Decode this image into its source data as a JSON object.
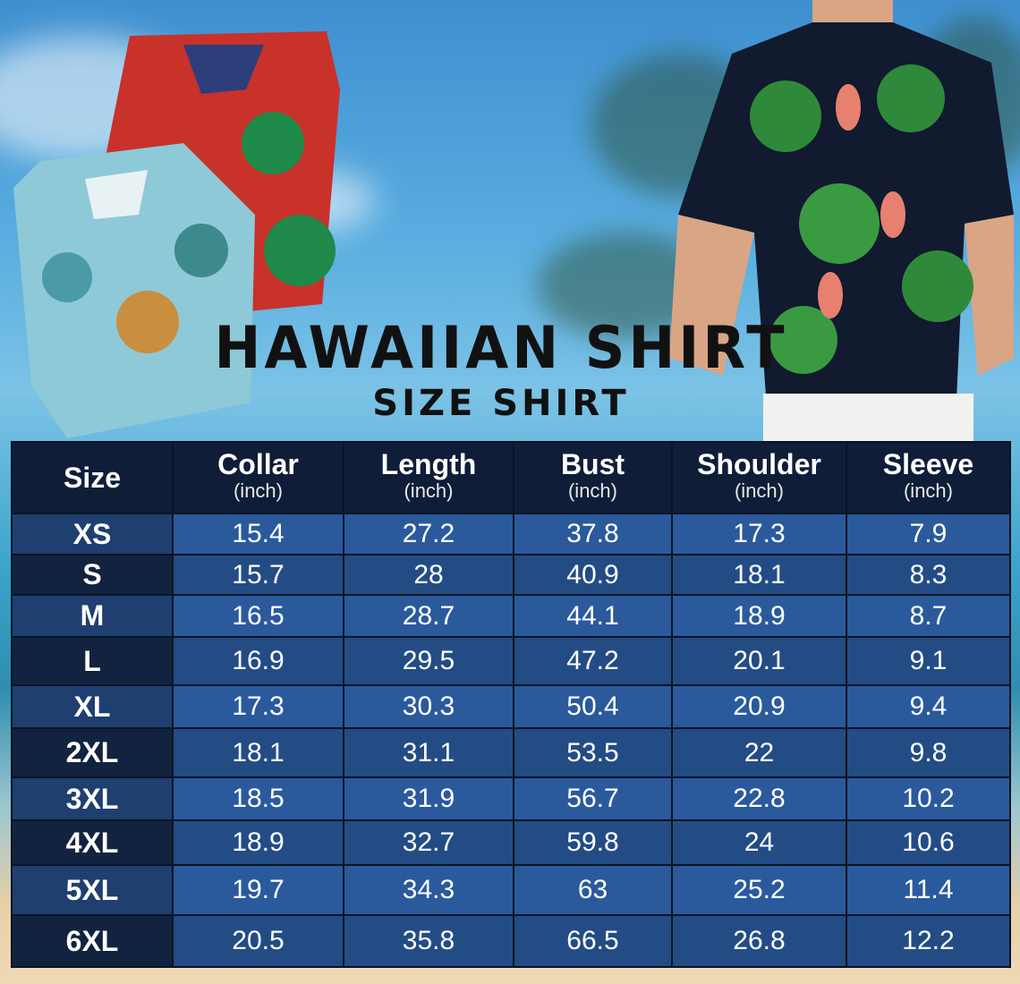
{
  "title": "HAWAIIAN SHIRT",
  "subtitle": "SIZE SHIRT",
  "table": {
    "headers": [
      {
        "label": "Size",
        "unit": ""
      },
      {
        "label": "Collar",
        "unit": "(inch)"
      },
      {
        "label": "Length",
        "unit": "(inch)"
      },
      {
        "label": "Bust",
        "unit": "(inch)"
      },
      {
        "label": "Shoulder",
        "unit": "(inch)"
      },
      {
        "label": "Sleeve",
        "unit": "(inch)"
      }
    ],
    "rows": [
      [
        "XS",
        "15.4",
        "27.2",
        "37.8",
        "17.3",
        "7.9"
      ],
      [
        "S",
        "15.7",
        "28",
        "40.9",
        "18.1",
        "8.3"
      ],
      [
        "M",
        "16.5",
        "28.7",
        "44.1",
        "18.9",
        "8.7"
      ],
      [
        "L",
        "16.9",
        "29.5",
        "47.2",
        "20.1",
        "9.1"
      ],
      [
        "XL",
        "17.3",
        "30.3",
        "50.4",
        "20.9",
        "9.4"
      ],
      [
        "2XL",
        "18.1",
        "31.1",
        "53.5",
        "22",
        "9.8"
      ],
      [
        "3XL",
        "18.5",
        "31.9",
        "56.7",
        "22.8",
        "10.2"
      ],
      [
        "4XL",
        "18.9",
        "32.7",
        "59.8",
        "24",
        "10.6"
      ],
      [
        "5XL",
        "19.7",
        "34.3",
        "63",
        "25.2",
        "11.4"
      ],
      [
        "6XL",
        "20.5",
        "35.8",
        "66.5",
        "26.8",
        "12.2"
      ]
    ]
  },
  "colors": {
    "header": "#0f1d38",
    "row_light": "#2a5a9c",
    "row_dark": "#234c85"
  }
}
